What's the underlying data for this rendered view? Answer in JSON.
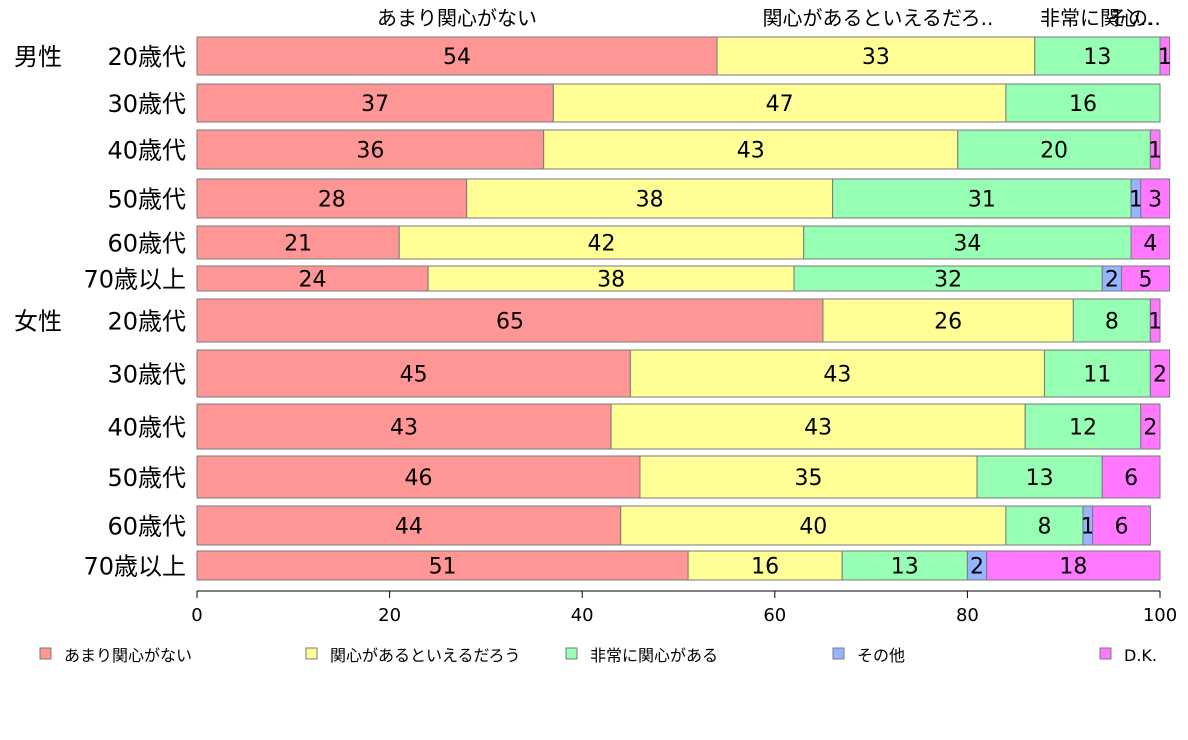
{
  "chart_data": {
    "type": "bar",
    "orientation": "horizontal",
    "stacked": true,
    "top_labels": [
      "あまり関心がない",
      "関心があるといえるだろ..",
      "非常に関心..",
      "その.."
    ],
    "group_labels": [
      "男性",
      "女性"
    ],
    "categories": [
      "20歳代",
      "30歳代",
      "40歳代",
      "50歳代",
      "60歳代",
      "70歳以上",
      "20歳代",
      "30歳代",
      "40歳代",
      "50歳代",
      "60歳代",
      "70歳以上"
    ],
    "series": [
      {
        "name": "あまり関心がない",
        "color": "#ff9696",
        "values": [
          54,
          37,
          36,
          28,
          21,
          24,
          65,
          45,
          43,
          46,
          44,
          51
        ]
      },
      {
        "name": "関心があるといえるだろう",
        "color": "#ffff96",
        "values": [
          33,
          47,
          43,
          38,
          42,
          38,
          26,
          43,
          43,
          35,
          40,
          16
        ]
      },
      {
        "name": "非常に関心がある",
        "color": "#96ffb4",
        "values": [
          13,
          16,
          20,
          31,
          34,
          32,
          8,
          11,
          12,
          13,
          8,
          13
        ]
      },
      {
        "name": "その他",
        "color": "#96b4ff",
        "values": [
          0,
          0,
          0,
          1,
          0,
          2,
          0,
          0,
          0,
          0,
          1,
          2
        ]
      },
      {
        "name": "D.K.",
        "color": "#ff78ff",
        "values": [
          1,
          0,
          1,
          3,
          4,
          5,
          1,
          2,
          2,
          6,
          6,
          18
        ]
      }
    ],
    "xlim": [
      0,
      100
    ],
    "xticks": [
      "0",
      "20",
      "40",
      "60",
      "80",
      "100"
    ],
    "legend_position": "bottom",
    "grid": false
  }
}
